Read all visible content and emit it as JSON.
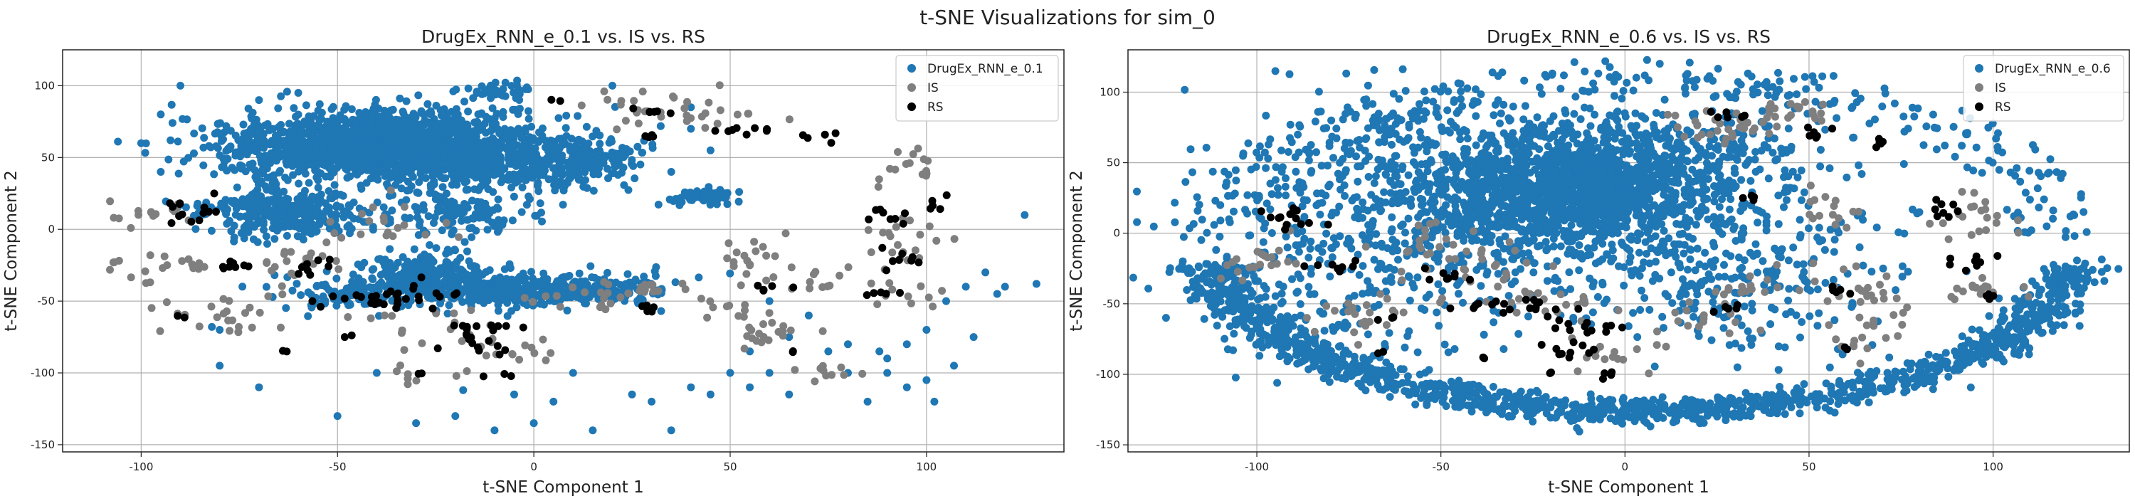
{
  "figure": {
    "suptitle": "t-SNE Visualizations for sim_0",
    "colors": {
      "generated": "#1f77b4",
      "IS": "#7f7f7f",
      "RS": "#000000"
    }
  },
  "chart_data": [
    {
      "type": "scatter",
      "title": "DrugEx_RNN_e_0.1 vs. IS vs. RS",
      "xlabel": "t-SNE Component 1",
      "ylabel": "t-SNE Component 2",
      "xlim": [
        -120,
        135
      ],
      "ylim": [
        -155,
        125
      ],
      "xticks": [
        -100,
        -50,
        0,
        50,
        100
      ],
      "yticks": [
        -150,
        -100,
        -50,
        0,
        50,
        100
      ],
      "grid": true,
      "legend_position": "top-right",
      "series": [
        {
          "name": "DrugEx_RNN_e_0.1",
          "color": "#1f77b4",
          "clusters": [
            [
              -38,
              58,
              20,
              12,
              1700
            ],
            [
              -5,
              45,
              15,
              10,
              350
            ],
            [
              -65,
              12,
              10,
              8,
              350
            ],
            [
              -28,
              -30,
              8,
              8,
              180
            ],
            [
              -5,
              -42,
              15,
              6,
              450
            ],
            [
              -45,
              -45,
              10,
              5,
              120
            ],
            [
              -10,
              97,
              4,
              3,
              35
            ],
            [
              43,
              22,
              4,
              3,
              60
            ],
            [
              15,
              52,
              6,
              5,
              80
            ],
            [
              20,
              -42,
              6,
              4,
              60
            ],
            [
              -20,
              10,
              10,
              8,
              120
            ]
          ],
          "points": [
            [
              -80,
              -70
            ],
            [
              -82,
              -68
            ],
            [
              -100,
              60
            ],
            [
              -95,
              80
            ],
            [
              -70,
              90
            ],
            [
              -60,
              95
            ],
            [
              -30,
              -135
            ],
            [
              -20,
              -130
            ],
            [
              -10,
              -140
            ],
            [
              0,
              -135
            ],
            [
              15,
              -140
            ],
            [
              25,
              -115
            ],
            [
              30,
              -120
            ],
            [
              40,
              -110
            ],
            [
              45,
              -115
            ],
            [
              50,
              -100
            ],
            [
              60,
              -100
            ],
            [
              55,
              -110
            ],
            [
              75,
              -85
            ],
            [
              80,
              -80
            ],
            [
              88,
              -85
            ],
            [
              95,
              -80
            ],
            [
              100,
              -70
            ],
            [
              105,
              -50
            ],
            [
              110,
              -40
            ],
            [
              115,
              -30
            ],
            [
              120,
              -40
            ],
            [
              125,
              10
            ],
            [
              128,
              -38
            ],
            [
              95,
              -110
            ],
            [
              102,
              -120
            ],
            [
              90,
              -100
            ],
            [
              70,
              -60
            ],
            [
              65,
              -75
            ],
            [
              35,
              40
            ],
            [
              45,
              55
            ],
            [
              40,
              70
            ],
            [
              40,
              85
            ],
            [
              20,
              100
            ],
            [
              -90,
              100
            ],
            [
              -95,
              40
            ],
            [
              -50,
              -130
            ],
            [
              -80,
              -95
            ],
            [
              -70,
              -110
            ],
            [
              5,
              -120
            ],
            [
              35,
              -140
            ],
            [
              -5,
              -115
            ],
            [
              10,
              -100
            ],
            [
              85,
              -120
            ],
            [
              107,
              -95
            ],
            [
              112,
              -75
            ],
            [
              118,
              -45
            ],
            [
              60,
              -50
            ],
            [
              -40,
              -100
            ],
            [
              -18,
              -112
            ],
            [
              55,
              -85
            ],
            [
              65,
              -115
            ],
            [
              80,
              -100
            ],
            [
              90,
              -90
            ],
            [
              100,
              -105
            ]
          ]
        },
        {
          "name": "IS",
          "color": "#7f7f7f",
          "clusters": [
            [
              -95,
              -25,
              8,
              6,
              20
            ],
            [
              -98,
              10,
              6,
              5,
              15
            ],
            [
              -75,
              -60,
              10,
              10,
              25
            ],
            [
              -60,
              -25,
              8,
              8,
              20
            ],
            [
              -25,
              -70,
              8,
              8,
              15
            ],
            [
              -5,
              -85,
              8,
              6,
              15
            ],
            [
              15,
              -50,
              8,
              6,
              15
            ],
            [
              30,
              -40,
              6,
              5,
              15
            ],
            [
              30,
              85,
              10,
              8,
              20
            ],
            [
              45,
              85,
              8,
              6,
              15
            ],
            [
              55,
              -20,
              5,
              10,
              20
            ],
            [
              60,
              -75,
              6,
              8,
              20
            ],
            [
              75,
              -35,
              6,
              6,
              10
            ],
            [
              95,
              -45,
              5,
              6,
              10
            ],
            [
              95,
              -10,
              6,
              10,
              20
            ],
            [
              95,
              45,
              4,
              6,
              15
            ],
            [
              75,
              -100,
              5,
              4,
              10
            ],
            [
              -30,
              -100,
              5,
              5,
              8
            ],
            [
              50,
              -55,
              5,
              5,
              10
            ],
            [
              -40,
              5,
              10,
              10,
              20
            ]
          ],
          "points": []
        },
        {
          "name": "RS",
          "color": "#000000",
          "clusters": [
            [
              -87,
              15,
              5,
              6,
              14
            ],
            [
              -78,
              -25,
              4,
              3,
              8
            ],
            [
              -55,
              -25,
              4,
              3,
              8
            ],
            [
              -40,
              -48,
              10,
              4,
              22
            ],
            [
              -15,
              -67,
              6,
              4,
              12
            ],
            [
              -12,
              -80,
              6,
              4,
              10
            ],
            [
              -30,
              -50,
              6,
              4,
              10
            ],
            [
              28,
              82,
              3,
              2,
              6
            ],
            [
              55,
              68,
              4,
              3,
              8
            ],
            [
              90,
              10,
              4,
              4,
              8
            ],
            [
              95,
              -20,
              4,
              4,
              8
            ],
            [
              70,
              65,
              3,
              2,
              5
            ],
            [
              58,
              -42,
              3,
              2,
              5
            ],
            [
              30,
              -55,
              3,
              3,
              5
            ],
            [
              -10,
              -100,
              2,
              2,
              3
            ],
            [
              -90,
              -60,
              1,
              1,
              2
            ],
            [
              -65,
              -85,
              1,
              1,
              2
            ],
            [
              -28,
              -100,
              1,
              1,
              2
            ],
            [
              -47,
              -75,
              1,
              1,
              2
            ],
            [
              90,
              -45,
              3,
              3,
              5
            ],
            [
              102,
              15,
              3,
              3,
              5
            ],
            [
              5,
              90,
              1,
              1,
              2
            ],
            [
              27,
              65,
              2,
              2,
              4
            ],
            [
              65,
              -85,
              1,
              1,
              2
            ]
          ],
          "points": []
        }
      ]
    },
    {
      "type": "scatter",
      "title": "DrugEx_RNN_e_0.6 vs. IS vs. RS",
      "xlabel": "t-SNE Component 1",
      "ylabel": "t-SNE Component 2",
      "xlim": [
        -135,
        137
      ],
      "ylim": [
        -155,
        130
      ],
      "xticks": [
        -100,
        -50,
        0,
        50,
        100
      ],
      "yticks": [
        -150,
        -100,
        -50,
        0,
        50,
        100
      ],
      "grid": true,
      "legend_position": "top-right",
      "series": [
        {
          "name": "DrugEx_RNN_e_0.6",
          "color": "#1f77b4",
          "clusters": [
            [
              -15,
              30,
              22,
              22,
              1500
            ],
            [
              -25,
              0,
              40,
              30,
              450
            ],
            [
              -50,
              50,
              35,
              30,
              350
            ],
            [
              20,
              60,
              20,
              20,
              200
            ],
            [
              -80,
              -40,
              25,
              30,
              180
            ],
            [
              30,
              -40,
              20,
              25,
              180
            ]
          ],
          "arc": {
            "cx": 5,
            "cy": -5,
            "rx": 125,
            "ry": 128,
            "inner_scale": 0.9,
            "n": 1400
          },
          "points": []
        },
        {
          "name": "IS",
          "color": "#7f7f7f",
          "clusters": [
            [
              -100,
              -20,
              8,
              6,
              20
            ],
            [
              -70,
              -55,
              10,
              10,
              25
            ],
            [
              -40,
              -20,
              10,
              10,
              25
            ],
            [
              -20,
              -50,
              8,
              8,
              20
            ],
            [
              -5,
              -85,
              6,
              6,
              15
            ],
            [
              20,
              -60,
              8,
              8,
              15
            ],
            [
              35,
              -40,
              6,
              6,
              15
            ],
            [
              60,
              -40,
              6,
              10,
              20
            ],
            [
              65,
              -70,
              6,
              8,
              20
            ],
            [
              95,
              -40,
              6,
              6,
              15
            ],
            [
              95,
              10,
              6,
              10,
              20
            ],
            [
              30,
              80,
              10,
              8,
              20
            ],
            [
              45,
              85,
              8,
              6,
              15
            ],
            [
              55,
              15,
              6,
              8,
              15
            ],
            [
              25,
              70,
              6,
              6,
              15
            ],
            [
              -55,
              -10,
              8,
              8,
              15
            ]
          ],
          "points": []
        },
        {
          "name": "RS",
          "color": "#000000",
          "clusters": [
            [
              -90,
              10,
              4,
              6,
              14
            ],
            [
              -78,
              -25,
              4,
              3,
              8
            ],
            [
              -50,
              -30,
              4,
              3,
              8
            ],
            [
              -30,
              -52,
              8,
              4,
              18
            ],
            [
              -12,
              -68,
              6,
              4,
              12
            ],
            [
              -15,
              -82,
              5,
              3,
              10
            ],
            [
              30,
              82,
              3,
              2,
              6
            ],
            [
              50,
              70,
              3,
              3,
              6
            ],
            [
              88,
              15,
              4,
              4,
              8
            ],
            [
              95,
              -20,
              4,
              4,
              8
            ],
            [
              70,
              65,
              3,
              2,
              5
            ],
            [
              58,
              -40,
              3,
              2,
              5
            ],
            [
              30,
              -55,
              3,
              3,
              5
            ],
            [
              -5,
              -100,
              2,
              2,
              4
            ],
            [
              100,
              -45,
              2,
              2,
              4
            ],
            [
              -65,
              -85,
              1,
              1,
              2
            ],
            [
              -38,
              -88,
              1,
              1,
              2
            ],
            [
              -20,
              -100,
              1,
              1,
              2
            ],
            [
              60,
              -82,
              1,
              1,
              2
            ],
            [
              33,
              25,
              2,
              2,
              4
            ],
            [
              -65,
              -60,
              2,
              2,
              3
            ]
          ],
          "points": []
        }
      ]
    }
  ]
}
